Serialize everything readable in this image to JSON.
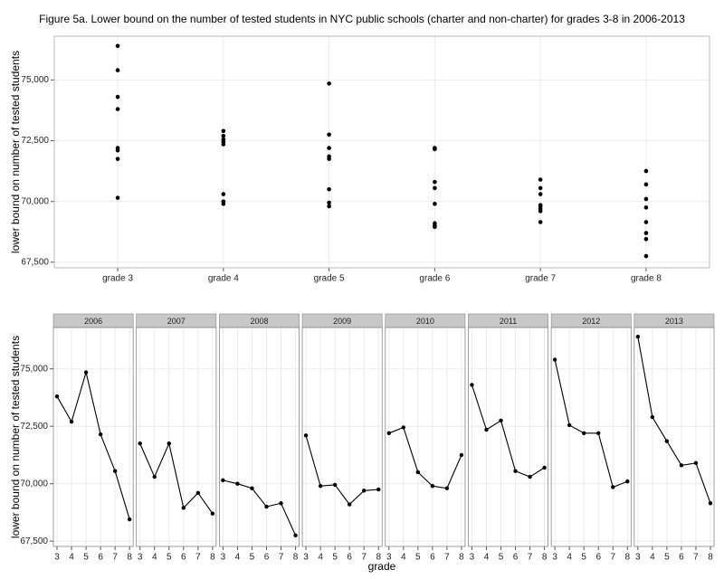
{
  "chart_data": [
    {
      "type": "strip",
      "title": "Figure 5a. Lower bound on the number of tested students in NYC public schools (charter and non-charter) for grades 3-8 in 2006-2013",
      "y_label": "lower bound on number of tested students",
      "categories": [
        "grade 3",
        "grade 4",
        "grade 5",
        "grade 6",
        "grade 7",
        "grade 8"
      ],
      "ylim": [
        67270,
        76800
      ],
      "yticks": [
        {
          "value": 67500,
          "label": "67,500"
        },
        {
          "value": 70000,
          "label": "70,000"
        },
        {
          "value": 72500,
          "label": "72,500"
        },
        {
          "value": 75000,
          "label": "75,000"
        }
      ],
      "grid": true,
      "color": "#000000"
    },
    {
      "type": "line-facets",
      "y_label": "lower bound on number of tested students",
      "x_label": "grade",
      "x": [
        3,
        4,
        5,
        6,
        7,
        8
      ],
      "xlim": [
        2.75,
        8.25
      ],
      "xticks": [
        3,
        4,
        5,
        6,
        7,
        8
      ],
      "ylim": [
        67270,
        76800
      ],
      "yticks": [
        {
          "value": 67500,
          "label": "67,500"
        },
        {
          "value": 70000,
          "label": "70,000"
        },
        {
          "value": 72500,
          "label": "72,500"
        },
        {
          "value": 75000,
          "label": "75,000"
        }
      ],
      "grid": true,
      "series": [
        {
          "name": "2006",
          "color": "#000000",
          "values": [
            73800,
            72700,
            74850,
            72150,
            70550,
            68450
          ]
        },
        {
          "name": "2007",
          "color": "#000000",
          "values": [
            71750,
            70300,
            71750,
            68950,
            69600,
            68700
          ]
        },
        {
          "name": "2008",
          "color": "#000000",
          "values": [
            70150,
            70000,
            69800,
            69000,
            69150,
            67750
          ]
        },
        {
          "name": "2009",
          "color": "#000000",
          "values": [
            72100,
            69900,
            69950,
            69100,
            69700,
            69750
          ]
        },
        {
          "name": "2010",
          "color": "#000000",
          "values": [
            72200,
            72450,
            70500,
            69900,
            69800,
            71250
          ]
        },
        {
          "name": "2011",
          "color": "#000000",
          "values": [
            74300,
            72350,
            72750,
            70550,
            70300,
            70700
          ]
        },
        {
          "name": "2012",
          "color": "#000000",
          "values": [
            75400,
            72550,
            72200,
            72200,
            69850,
            70100
          ]
        },
        {
          "name": "2013",
          "color": "#000000",
          "values": [
            76400,
            72900,
            71850,
            70800,
            70900,
            69150
          ]
        }
      ]
    }
  ]
}
